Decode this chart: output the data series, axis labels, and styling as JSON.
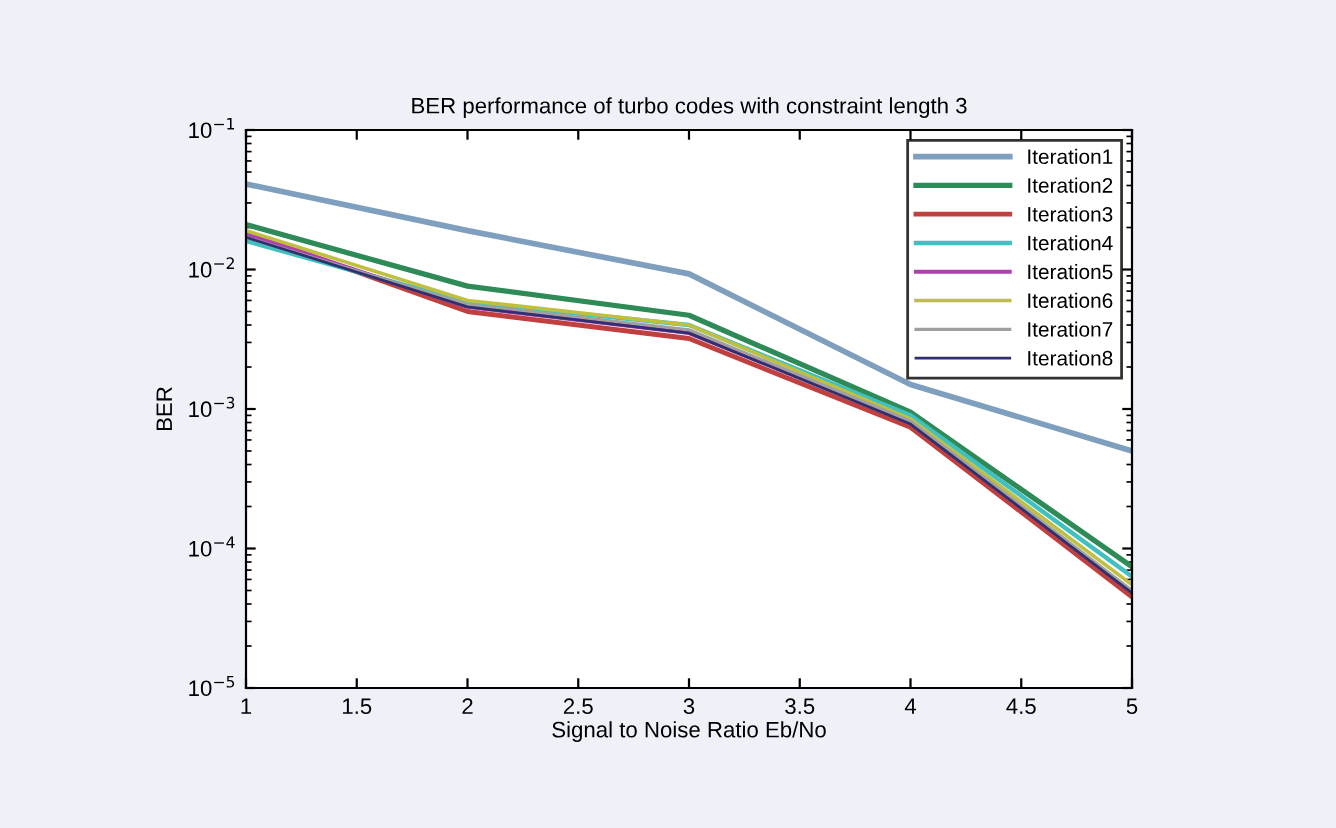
{
  "chart_data": {
    "type": "line",
    "title": "BER performance of turbo codes with constraint length 3",
    "xlabel": "Signal to Noise Ratio Eb/No",
    "ylabel": "BER",
    "x": [
      1,
      2,
      3,
      4,
      5
    ],
    "series": [
      {
        "name": "Iteration1",
        "color": "#7f9fbf",
        "values": [
          0.041,
          0.019,
          0.0093,
          0.0015,
          0.0005
        ]
      },
      {
        "name": "Iteration2",
        "color": "#2e8b57",
        "values": [
          0.021,
          0.0076,
          0.0047,
          0.00095,
          7.4e-05
        ]
      },
      {
        "name": "Iteration3",
        "color": "#c04040",
        "values": [
          0.0185,
          0.005,
          0.0032,
          0.00074,
          4.5e-05
        ]
      },
      {
        "name": "Iteration4",
        "color": "#40c0c0",
        "values": [
          0.016,
          0.0058,
          0.004,
          0.0009,
          6.3e-05
        ]
      },
      {
        "name": "Iteration5",
        "color": "#b040b0",
        "values": [
          0.018,
          0.0054,
          0.0035,
          0.0008,
          4.9e-05
        ]
      },
      {
        "name": "Iteration6",
        "color": "#c0c040",
        "values": [
          0.019,
          0.006,
          0.004,
          0.00085,
          5.5e-05
        ]
      },
      {
        "name": "Iteration7",
        "color": "#a0a0a0",
        "values": [
          0.017,
          0.0056,
          0.0037,
          0.00082,
          5e-05
        ]
      },
      {
        "name": "Iteration8",
        "color": "#303070",
        "values": [
          0.017,
          0.0054,
          0.0035,
          0.00078,
          4.8e-05
        ]
      }
    ],
    "log": "y",
    "xlim": [
      1,
      5
    ],
    "xticks": [
      1,
      1.5,
      2,
      2.5,
      3,
      3.5,
      4,
      4.5,
      5
    ],
    "ylim": [
      1e-05,
      0.1
    ],
    "yticks": [
      {
        "value": 1e-05,
        "label": "10$^{−5}$"
      },
      {
        "value": 0.0001,
        "label": "10$^{−4}$"
      },
      {
        "value": 0.001,
        "label": "10$^{−3}$"
      },
      {
        "value": 0.01,
        "label": "10$^{−2}$"
      },
      {
        "value": 0.1,
        "label": "10$^{−1}$"
      }
    ],
    "grid": false,
    "legend": "top right",
    "marker": "none",
    "line_style": "solid"
  }
}
